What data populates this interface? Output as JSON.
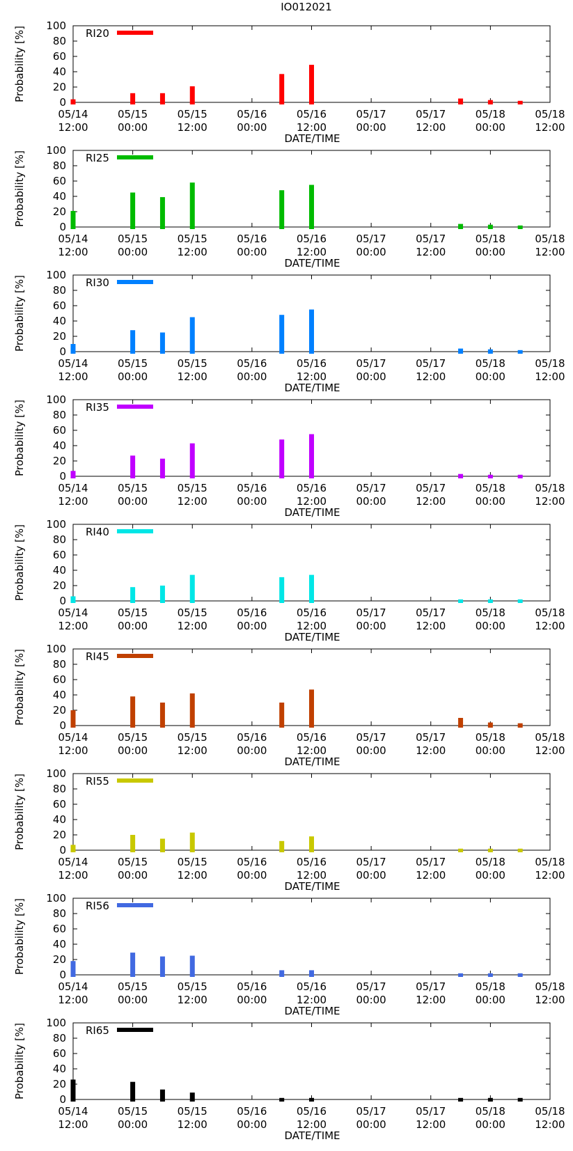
{
  "title": "IO012021",
  "chart_data": [
    {
      "type": "bar",
      "series_name": "RI20",
      "color": "#ff0000",
      "x": [
        "05/14 12:00",
        "05/15 00:00",
        "05/15 06:00",
        "05/15 12:00",
        "05/16 06:00",
        "05/16 12:00",
        "05/17 18:00",
        "05/18 00:00",
        "05/18 06:00"
      ],
      "values": [
        4,
        12,
        12,
        21,
        37,
        49,
        5,
        3,
        2
      ],
      "ylim": [
        0,
        100
      ],
      "yticks": [
        0,
        20,
        40,
        60,
        80,
        100
      ],
      "ylabel": "Probability [%]",
      "xlabel": "DATE/TIME",
      "xticks": [
        [
          "05/14",
          "12:00"
        ],
        [
          "05/15",
          "00:00"
        ],
        [
          "05/15",
          "12:00"
        ],
        [
          "05/16",
          "00:00"
        ],
        [
          "05/16",
          "12:00"
        ],
        [
          "05/17",
          "00:00"
        ],
        [
          "05/17",
          "12:00"
        ],
        [
          "05/18",
          "00:00"
        ],
        [
          "05/18",
          "12:00"
        ]
      ],
      "legend": "top-left"
    },
    {
      "type": "bar",
      "series_name": "RI25",
      "color": "#00bb00",
      "x": [
        "05/14 12:00",
        "05/15 00:00",
        "05/15 06:00",
        "05/15 12:00",
        "05/16 06:00",
        "05/16 12:00",
        "05/17 18:00",
        "05/18 00:00",
        "05/18 06:00"
      ],
      "values": [
        21,
        45,
        39,
        58,
        48,
        55,
        4,
        3,
        2
      ],
      "ylim": [
        0,
        100
      ],
      "yticks": [
        0,
        20,
        40,
        60,
        80,
        100
      ],
      "ylabel": "Probability [%]",
      "xlabel": "DATE/TIME",
      "xticks": [
        [
          "05/14",
          "12:00"
        ],
        [
          "05/15",
          "00:00"
        ],
        [
          "05/15",
          "12:00"
        ],
        [
          "05/16",
          "00:00"
        ],
        [
          "05/16",
          "12:00"
        ],
        [
          "05/17",
          "00:00"
        ],
        [
          "05/17",
          "12:00"
        ],
        [
          "05/18",
          "00:00"
        ],
        [
          "05/18",
          "12:00"
        ]
      ],
      "legend": "top-left"
    },
    {
      "type": "bar",
      "series_name": "RI30",
      "color": "#0080ff",
      "x": [
        "05/14 12:00",
        "05/15 00:00",
        "05/15 06:00",
        "05/15 12:00",
        "05/16 06:00",
        "05/16 12:00",
        "05/17 18:00",
        "05/18 00:00",
        "05/18 06:00"
      ],
      "values": [
        10,
        28,
        25,
        45,
        48,
        55,
        4,
        3,
        2
      ],
      "ylim": [
        0,
        100
      ],
      "yticks": [
        0,
        20,
        40,
        60,
        80,
        100
      ],
      "ylabel": "Probability [%]",
      "xlabel": "DATE/TIME",
      "xticks": [
        [
          "05/14",
          "12:00"
        ],
        [
          "05/15",
          "00:00"
        ],
        [
          "05/15",
          "12:00"
        ],
        [
          "05/16",
          "00:00"
        ],
        [
          "05/16",
          "12:00"
        ],
        [
          "05/17",
          "00:00"
        ],
        [
          "05/17",
          "12:00"
        ],
        [
          "05/18",
          "00:00"
        ],
        [
          "05/18",
          "12:00"
        ]
      ],
      "legend": "top-left"
    },
    {
      "type": "bar",
      "series_name": "RI35",
      "color": "#c000ff",
      "x": [
        "05/14 12:00",
        "05/15 00:00",
        "05/15 06:00",
        "05/15 12:00",
        "05/16 06:00",
        "05/16 12:00",
        "05/17 18:00",
        "05/18 00:00",
        "05/18 06:00"
      ],
      "values": [
        7,
        27,
        23,
        43,
        48,
        55,
        3,
        2,
        2
      ],
      "ylim": [
        0,
        100
      ],
      "yticks": [
        0,
        20,
        40,
        60,
        80,
        100
      ],
      "ylabel": "Probability [%]",
      "xlabel": "DATE/TIME",
      "xticks": [
        [
          "05/14",
          "12:00"
        ],
        [
          "05/15",
          "00:00"
        ],
        [
          "05/15",
          "12:00"
        ],
        [
          "05/16",
          "00:00"
        ],
        [
          "05/16",
          "12:00"
        ],
        [
          "05/17",
          "00:00"
        ],
        [
          "05/17",
          "12:00"
        ],
        [
          "05/18",
          "00:00"
        ],
        [
          "05/18",
          "12:00"
        ]
      ],
      "legend": "top-left"
    },
    {
      "type": "bar",
      "series_name": "RI40",
      "color": "#00e6e6",
      "x": [
        "05/14 12:00",
        "05/15 00:00",
        "05/15 06:00",
        "05/15 12:00",
        "05/16 06:00",
        "05/16 12:00",
        "05/17 18:00",
        "05/18 00:00",
        "05/18 06:00"
      ],
      "values": [
        6,
        18,
        20,
        34,
        31,
        34,
        2,
        2,
        2
      ],
      "ylim": [
        0,
        100
      ],
      "yticks": [
        0,
        20,
        40,
        60,
        80,
        100
      ],
      "ylabel": "Probability [%]",
      "xlabel": "DATE/TIME",
      "xticks": [
        [
          "05/14",
          "12:00"
        ],
        [
          "05/15",
          "00:00"
        ],
        [
          "05/15",
          "12:00"
        ],
        [
          "05/16",
          "00:00"
        ],
        [
          "05/16",
          "12:00"
        ],
        [
          "05/17",
          "00:00"
        ],
        [
          "05/17",
          "12:00"
        ],
        [
          "05/18",
          "00:00"
        ],
        [
          "05/18",
          "12:00"
        ]
      ],
      "legend": "top-left"
    },
    {
      "type": "bar",
      "series_name": "RI45",
      "color": "#c04000",
      "x": [
        "05/14 12:00",
        "05/15 00:00",
        "05/15 06:00",
        "05/15 12:00",
        "05/16 06:00",
        "05/16 12:00",
        "05/17 18:00",
        "05/18 00:00",
        "05/18 06:00"
      ],
      "values": [
        20,
        38,
        30,
        42,
        30,
        47,
        10,
        4,
        3
      ],
      "ylim": [
        0,
        100
      ],
      "yticks": [
        0,
        20,
        40,
        60,
        80,
        100
      ],
      "ylabel": "Probability [%]",
      "xlabel": "DATE/TIME",
      "xticks": [
        [
          "05/14",
          "12:00"
        ],
        [
          "05/15",
          "00:00"
        ],
        [
          "05/15",
          "12:00"
        ],
        [
          "05/16",
          "00:00"
        ],
        [
          "05/16",
          "12:00"
        ],
        [
          "05/17",
          "00:00"
        ],
        [
          "05/17",
          "12:00"
        ],
        [
          "05/18",
          "00:00"
        ],
        [
          "05/18",
          "12:00"
        ]
      ],
      "legend": "top-left"
    },
    {
      "type": "bar",
      "series_name": "RI55",
      "color": "#c8c800",
      "x": [
        "05/14 12:00",
        "05/15 00:00",
        "05/15 06:00",
        "05/15 12:00",
        "05/16 06:00",
        "05/16 12:00",
        "05/17 18:00",
        "05/18 00:00",
        "05/18 06:00"
      ],
      "values": [
        7,
        20,
        15,
        23,
        12,
        18,
        2,
        2,
        2
      ],
      "ylim": [
        0,
        100
      ],
      "yticks": [
        0,
        20,
        40,
        60,
        80,
        100
      ],
      "ylabel": "Probability [%]",
      "xlabel": "DATE/TIME",
      "xticks": [
        [
          "05/14",
          "12:00"
        ],
        [
          "05/15",
          "00:00"
        ],
        [
          "05/15",
          "12:00"
        ],
        [
          "05/16",
          "00:00"
        ],
        [
          "05/16",
          "12:00"
        ],
        [
          "05/17",
          "00:00"
        ],
        [
          "05/17",
          "12:00"
        ],
        [
          "05/18",
          "00:00"
        ],
        [
          "05/18",
          "12:00"
        ]
      ],
      "legend": "top-left"
    },
    {
      "type": "bar",
      "series_name": "RI56",
      "color": "#4169e1",
      "x": [
        "05/14 12:00",
        "05/15 00:00",
        "05/15 06:00",
        "05/15 12:00",
        "05/16 06:00",
        "05/16 12:00",
        "05/17 18:00",
        "05/18 00:00",
        "05/18 06:00"
      ],
      "values": [
        18,
        29,
        24,
        25,
        6,
        6,
        2,
        2,
        2
      ],
      "ylim": [
        0,
        100
      ],
      "yticks": [
        0,
        20,
        40,
        60,
        80,
        100
      ],
      "ylabel": "Probability [%]",
      "xlabel": "DATE/TIME",
      "xticks": [
        [
          "05/14",
          "12:00"
        ],
        [
          "05/15",
          "00:00"
        ],
        [
          "05/15",
          "12:00"
        ],
        [
          "05/16",
          "00:00"
        ],
        [
          "05/16",
          "12:00"
        ],
        [
          "05/17",
          "00:00"
        ],
        [
          "05/17",
          "12:00"
        ],
        [
          "05/18",
          "00:00"
        ],
        [
          "05/18",
          "12:00"
        ]
      ],
      "legend": "top-left"
    },
    {
      "type": "bar",
      "series_name": "RI65",
      "color": "#000000",
      "x": [
        "05/14 12:00",
        "05/15 00:00",
        "05/15 06:00",
        "05/15 12:00",
        "05/16 06:00",
        "05/16 12:00",
        "05/17 18:00",
        "05/18 00:00",
        "05/18 06:00"
      ],
      "values": [
        26,
        23,
        13,
        9,
        2,
        2,
        2,
        2,
        2
      ],
      "ylim": [
        0,
        100
      ],
      "yticks": [
        0,
        20,
        40,
        60,
        80,
        100
      ],
      "ylabel": "Probability [%]",
      "xlabel": "DATE/TIME",
      "xticks": [
        [
          "05/14",
          "12:00"
        ],
        [
          "05/15",
          "00:00"
        ],
        [
          "05/15",
          "12:00"
        ],
        [
          "05/16",
          "00:00"
        ],
        [
          "05/16",
          "12:00"
        ],
        [
          "05/17",
          "00:00"
        ],
        [
          "05/17",
          "12:00"
        ],
        [
          "05/18",
          "00:00"
        ],
        [
          "05/18",
          "12:00"
        ]
      ],
      "legend": "top-left"
    }
  ]
}
